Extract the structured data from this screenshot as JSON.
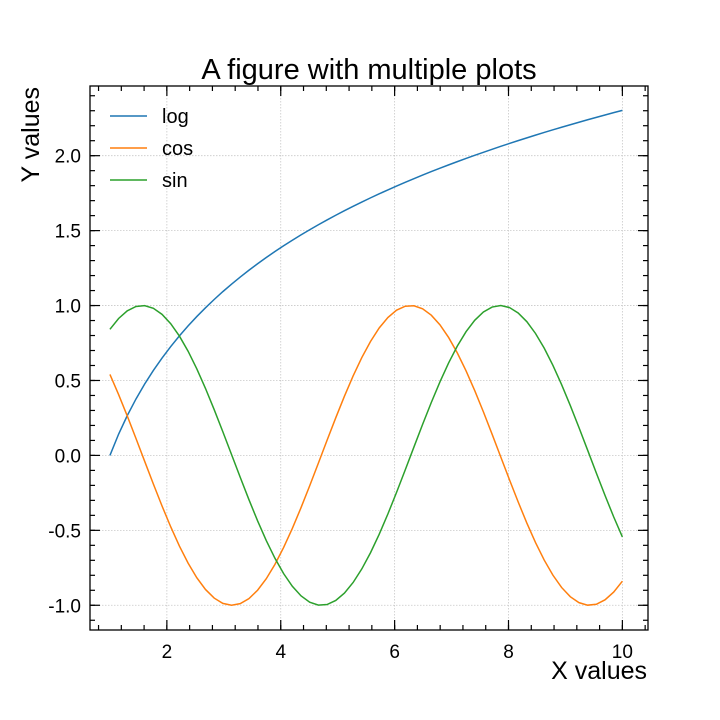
{
  "chart_data": {
    "type": "line",
    "title": "A figure with multiple plots",
    "xlabel": "X values",
    "ylabel": "Y values",
    "xlim": [
      0.65,
      10.45
    ],
    "ylim": [
      -1.165,
      2.465
    ],
    "grid": true,
    "legend_position": "top-left",
    "x_ticks": [
      2,
      4,
      6,
      8,
      10
    ],
    "x_tick_labels": [
      "2",
      "4",
      "6",
      "8",
      "10"
    ],
    "y_ticks": [
      -1.0,
      -0.5,
      0.0,
      0.5,
      1.0,
      1.5,
      2.0
    ],
    "y_tick_labels": [
      "-1.0",
      "-0.5",
      "0.0",
      "0.5",
      "1.0",
      "1.5",
      "2.0"
    ],
    "x": {
      "start": 1,
      "stop": 10,
      "num": 60
    },
    "series": [
      {
        "name": "log",
        "function": "log",
        "color": "#1f77b4"
      },
      {
        "name": "cos",
        "function": "cos",
        "color": "#ff7f0e"
      },
      {
        "name": "sin",
        "function": "sin",
        "color": "#2ca02c"
      }
    ]
  }
}
